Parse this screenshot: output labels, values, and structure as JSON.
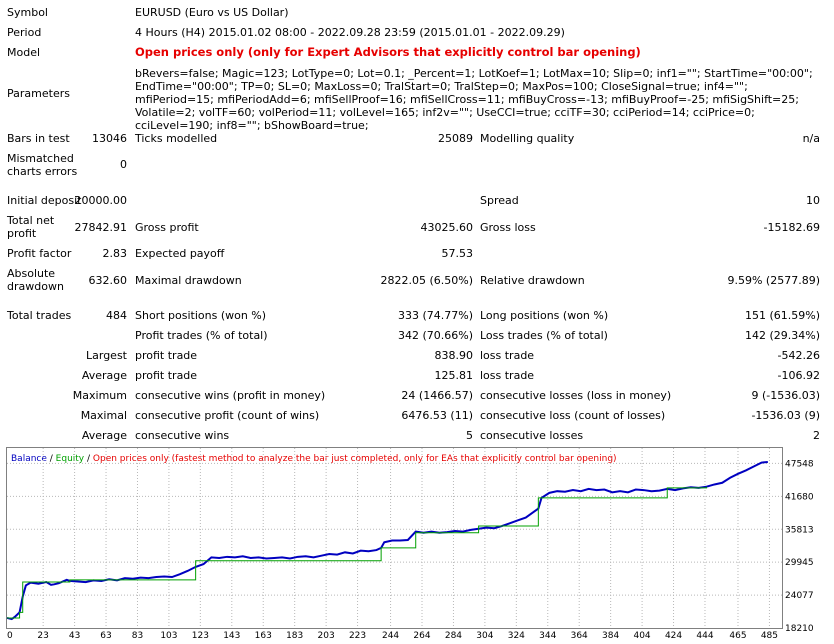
{
  "report": {
    "symbol": {
      "label": "Symbol",
      "value": "EURUSD (Euro vs US Dollar)"
    },
    "period": {
      "label": "Period",
      "value": "4 Hours (H4) 2015.01.02 08:00 - 2022.09.28 23:59 (2015.01.01 - 2022.09.29)"
    },
    "model": {
      "label": "Model",
      "value": "Open prices only (only for Expert Advisors that explicitly control bar opening)"
    },
    "parameters": {
      "label": "Parameters",
      "value": "bRevers=false; Magic=123; LotType=0; Lot=0.1; _Percent=1; LotKoef=1; LotMax=10; Slip=0; inf1=\"\"; StartTime=\"00:00\"; EndTime=\"00:00\"; TP=0; SL=0; MaxLoss=0; TralStart=0; TralStep=0; MaxPos=100; CloseSignal=true; inf4=\"\"; mfiPeriod=15; mfiPeriodAdd=6; mfiSellProof=16; mfiSellCross=11; mfiBuyCross=-13; mfiBuyProof=-25; mfiSigShift=25; Volatile=2; volTF=60; volPeriod=11; volLevel=165; inf2v=\"\"; UseCCI=true; cciTF=30; cciPeriod=14; cciPrice=0; cciLevel=190; inf8=\"\"; bShowBoard=true;"
    },
    "bars_in_test": {
      "label": "Bars in test",
      "value": "13046"
    },
    "ticks_modelled": {
      "label": "Ticks modelled",
      "value": "25089"
    },
    "modelling_quality": {
      "label": "Modelling quality",
      "value": "n/a"
    },
    "mismatched": {
      "label1": "Mismatched",
      "label2": "charts errors",
      "value": "0"
    },
    "initial_deposit": {
      "label": "Initial deposit",
      "value": "20000.00"
    },
    "spread": {
      "label": "Spread",
      "value": "10"
    },
    "total_net_profit": {
      "label1": "Total net",
      "label2": "profit",
      "value": "27842.91"
    },
    "gross_profit": {
      "label": "Gross profit",
      "value": "43025.60"
    },
    "gross_loss": {
      "label": "Gross loss",
      "value": "-15182.69"
    },
    "profit_factor": {
      "label": "Profit factor",
      "value": "2.83"
    },
    "expected_payoff": {
      "label": "Expected payoff",
      "value": "57.53"
    },
    "absolute_drawdown": {
      "label1": "Absolute",
      "label2": "drawdown",
      "value": "632.60"
    },
    "maximal_drawdown": {
      "label": "Maximal drawdown",
      "value": "2822.05 (6.50%)"
    },
    "relative_drawdown": {
      "label": "Relative drawdown",
      "value": "9.59% (2577.89)"
    },
    "total_trades": {
      "label": "Total trades",
      "value": "484"
    },
    "short_positions": {
      "label": "Short positions (won %)",
      "value": "333 (74.77%)"
    },
    "long_positions": {
      "label": "Long positions (won %)",
      "value": "151 (61.59%)"
    },
    "profit_trades": {
      "label": "Profit trades (% of total)",
      "value": "342 (70.66%)"
    },
    "loss_trades": {
      "label": "Loss trades (% of total)",
      "value": "142 (29.34%)"
    },
    "largest": {
      "prefix": "Largest",
      "profit_label": "profit trade",
      "profit_value": "838.90",
      "loss_label": "loss trade",
      "loss_value": "-542.26"
    },
    "average": {
      "prefix": "Average",
      "profit_label": "profit trade",
      "profit_value": "125.81",
      "loss_label": "loss trade",
      "loss_value": "-106.92"
    },
    "maximum": {
      "prefix": "Maximum",
      "profit_label": "consecutive wins (profit in money)",
      "profit_value": "24 (1466.57)",
      "loss_label": "consecutive losses (loss in money)",
      "loss_value": "9 (-1536.03)"
    },
    "maximal": {
      "prefix": "Maximal",
      "profit_label": "consecutive profit (count of wins)",
      "profit_value": "6476.53 (11)",
      "loss_label": "consecutive loss (count of losses)",
      "loss_value": "-1536.03 (9)"
    },
    "average_consec": {
      "prefix": "Average",
      "profit_label": "consecutive wins",
      "profit_value": "5",
      "loss_label": "consecutive losses",
      "loss_value": "2"
    }
  },
  "chart_data": {
    "type": "line",
    "legend": {
      "balance": "Balance",
      "sep1": " / ",
      "equity": "Equity",
      "sep2": " / ",
      "note": "Open prices only (fastest method to analyze the bar just completed, only for EAs that explicitly control bar opening)"
    },
    "colors": {
      "balance": "#0000c0",
      "equity": "#00a000",
      "note": "#e60000",
      "grid": "#b8b8b8"
    },
    "x_ticks": [
      "0",
      "23",
      "43",
      "63",
      "83",
      "103",
      "123",
      "143",
      "163",
      "183",
      "203",
      "223",
      "244",
      "264",
      "284",
      "304",
      "324",
      "344",
      "364",
      "384",
      "404",
      "424",
      "444",
      "465",
      "485"
    ],
    "y_ticks": [
      "47548",
      "41680",
      "35813",
      "29945",
      "24077",
      "18210"
    ],
    "xlim": [
      0,
      493
    ],
    "ylim": [
      18210,
      50300
    ],
    "series": [
      {
        "name": "Balance",
        "x": [
          0,
          3,
          5,
          8,
          10,
          12,
          15,
          20,
          25,
          28,
          30,
          33,
          38,
          40,
          45,
          50,
          55,
          60,
          65,
          70,
          75,
          80,
          85,
          90,
          95,
          100,
          105,
          110,
          115,
          120,
          125,
          130,
          135,
          140,
          145,
          150,
          155,
          160,
          165,
          170,
          175,
          180,
          185,
          190,
          195,
          200,
          205,
          210,
          215,
          220,
          225,
          230,
          235,
          238,
          240,
          245,
          250,
          255,
          260,
          265,
          270,
          275,
          280,
          285,
          290,
          295,
          300,
          305,
          310,
          315,
          320,
          325,
          330,
          335,
          338,
          340,
          345,
          350,
          355,
          360,
          365,
          370,
          375,
          380,
          385,
          390,
          395,
          400,
          405,
          410,
          415,
          420,
          425,
          430,
          435,
          440,
          445,
          450,
          455,
          460,
          465,
          470,
          475,
          480,
          484
        ],
        "y": [
          20000,
          19800,
          20200,
          21000,
          23800,
          25800,
          26300,
          26100,
          26400,
          25900,
          26000,
          26200,
          26800,
          26600,
          26500,
          26400,
          26700,
          26600,
          26900,
          26700,
          27100,
          27000,
          27200,
          27100,
          27300,
          27400,
          27300,
          27800,
          28400,
          29100,
          29600,
          30800,
          30700,
          30900,
          30800,
          31000,
          30700,
          30800,
          30600,
          30700,
          30800,
          30600,
          30900,
          31000,
          30800,
          31100,
          31400,
          31300,
          31700,
          31500,
          32000,
          31900,
          32100,
          32500,
          33500,
          33800,
          33800,
          33900,
          35400,
          35200,
          35400,
          35200,
          35300,
          35500,
          35400,
          35700,
          35900,
          36100,
          36000,
          36400,
          36900,
          37400,
          37900,
          38900,
          39500,
          41400,
          42300,
          42600,
          42500,
          42800,
          42600,
          43000,
          42800,
          42900,
          42400,
          42600,
          42400,
          42900,
          42800,
          42600,
          42700,
          43000,
          42800,
          43100,
          43300,
          43200,
          43400,
          43800,
          44100,
          45000,
          45700,
          46300,
          47000,
          47700,
          47800
        ]
      },
      {
        "name": "Equity",
        "x": [
          0,
          8,
          10,
          40,
          120,
          238,
          260,
          300,
          338,
          420,
          445
        ],
        "y": [
          20000,
          21000,
          26400,
          26800,
          30200,
          32500,
          35200,
          36400,
          41400,
          43200,
          43400
        ]
      }
    ]
  }
}
